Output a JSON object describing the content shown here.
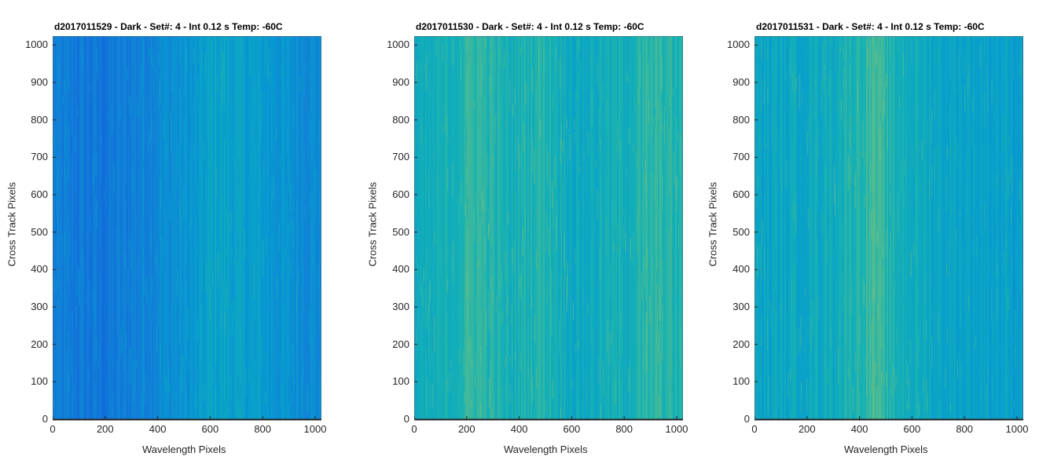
{
  "chart_data": [
    {
      "type": "heatmap",
      "title": "d2017011529 - Dark - Set#: 4 - Int 0.12 s Temp: -60C",
      "xlabel": "Wavelength Pixels",
      "ylabel": "Cross Track Pixels",
      "xlim": [
        0,
        1024
      ],
      "ylim": [
        0,
        1024
      ],
      "xticks": [
        0,
        200,
        400,
        600,
        800,
        1000
      ],
      "yticks": [
        0,
        100,
        200,
        300,
        400,
        500,
        600,
        700,
        800,
        900,
        1000
      ],
      "column_intensity": [
        {
          "x": 0,
          "v": 0.28
        },
        {
          "x": 200,
          "v": 0.25
        },
        {
          "x": 400,
          "v": 0.33
        },
        {
          "x": 550,
          "v": 0.38
        },
        {
          "x": 620,
          "v": 0.44
        },
        {
          "x": 750,
          "v": 0.41
        },
        {
          "x": 900,
          "v": 0.36
        },
        {
          "x": 1024,
          "v": 0.33
        }
      ]
    },
    {
      "type": "heatmap",
      "title": "d2017011530 - Dark - Set#: 4 - Int 0.12 s Temp: -60C",
      "xlabel": "Wavelength Pixels",
      "ylabel": "Cross Track Pixels",
      "xlim": [
        0,
        1024
      ],
      "ylim": [
        0,
        1024
      ],
      "xticks": [
        0,
        200,
        400,
        600,
        800,
        1000
      ],
      "yticks": [
        0,
        100,
        200,
        300,
        400,
        500,
        600,
        700,
        800,
        900,
        1000
      ],
      "column_intensity": [
        {
          "x": 0,
          "v": 0.46
        },
        {
          "x": 120,
          "v": 0.5
        },
        {
          "x": 230,
          "v": 0.58
        },
        {
          "x": 360,
          "v": 0.5
        },
        {
          "x": 480,
          "v": 0.55
        },
        {
          "x": 620,
          "v": 0.47
        },
        {
          "x": 780,
          "v": 0.5
        },
        {
          "x": 940,
          "v": 0.56
        },
        {
          "x": 1024,
          "v": 0.52
        }
      ]
    },
    {
      "type": "heatmap",
      "title": "d2017011531 - Dark - Set#: 4 - Int 0.12 s Temp: -60C",
      "xlabel": "Wavelength Pixels",
      "ylabel": "Cross Track Pixels",
      "xlim": [
        0,
        1024
      ],
      "ylim": [
        0,
        1024
      ],
      "xticks": [
        0,
        200,
        400,
        600,
        800,
        1000
      ],
      "yticks": [
        0,
        100,
        200,
        300,
        400,
        500,
        600,
        700,
        800,
        900,
        1000
      ],
      "column_intensity": [
        {
          "x": 0,
          "v": 0.44
        },
        {
          "x": 150,
          "v": 0.46
        },
        {
          "x": 300,
          "v": 0.49
        },
        {
          "x": 420,
          "v": 0.56
        },
        {
          "x": 450,
          "v": 0.6
        },
        {
          "x": 520,
          "v": 0.52
        },
        {
          "x": 700,
          "v": 0.45
        },
        {
          "x": 900,
          "v": 0.43
        },
        {
          "x": 1024,
          "v": 0.42
        }
      ]
    }
  ]
}
